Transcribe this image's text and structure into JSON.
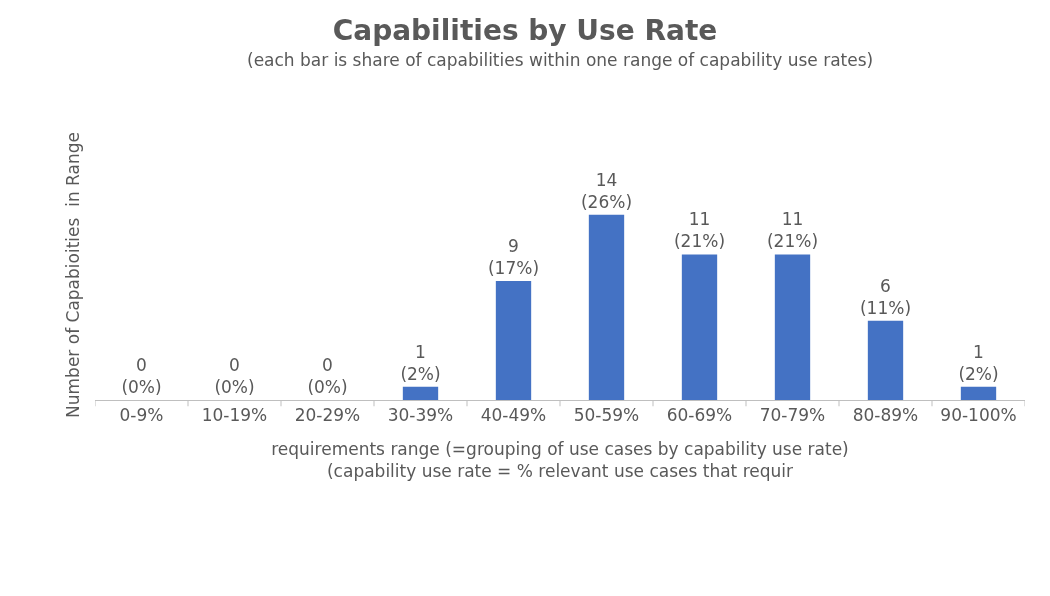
{
  "chart_data": {
    "type": "bar",
    "title": "Capabilities by Use Rate",
    "subtitle": "(each bar is share of capabilities within one range of capability use rates)",
    "xlabel": "requirements range (=grouping of use cases by capability use rate)\n(capability use rate = % relevant use cases that requir",
    "ylabel": "Number of Capabioities  in Range",
    "categories": [
      "0-9%",
      "10-19%",
      "20-29%",
      "30-39%",
      "40-49%",
      "50-59%",
      "60-69%",
      "70-79%",
      "80-89%",
      "90-100%"
    ],
    "values": [
      0,
      0,
      0,
      1,
      9,
      14,
      11,
      11,
      6,
      1
    ],
    "value_labels": [
      "0\n(0%)",
      "0\n(0%)",
      "0\n(0%)",
      "1\n(2%)",
      "9\n(17%)",
      "14\n(26%)",
      "11\n(21%)",
      "11\n(21%)",
      "6\n(11%)",
      "1\n(2%)"
    ],
    "color": "#4472c4"
  }
}
